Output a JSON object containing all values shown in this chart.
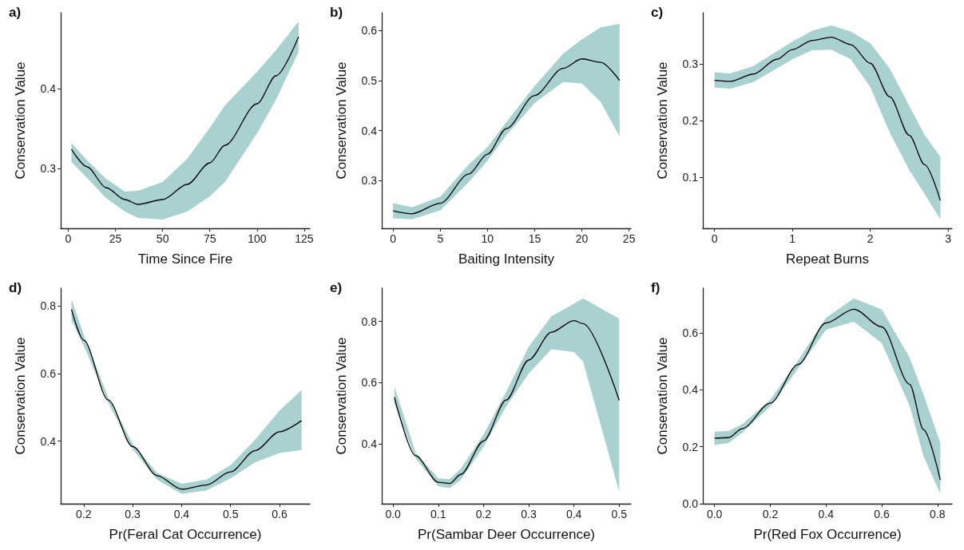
{
  "chart_data": [
    {
      "type": "line",
      "title": "a)",
      "xlabel": "Time Since Fire",
      "ylabel": "Conservation Value",
      "xlim": [
        -4,
        128
      ],
      "xticks": [
        0,
        25,
        50,
        75,
        100,
        125
      ],
      "ylim": [
        0.225,
        0.495
      ],
      "yticks": [
        0.3,
        0.4
      ],
      "x": [
        1.7,
        10,
        20,
        30,
        37,
        50,
        63,
        75,
        83,
        100,
        110,
        122
      ],
      "series": [
        {
          "color": "#000000",
          "values": [
            0.324,
            0.302,
            0.276,
            0.261,
            0.255,
            0.261,
            0.28,
            0.307,
            0.329,
            0.381,
            0.416,
            0.465
          ],
          "lower": [
            0.308,
            0.288,
            0.263,
            0.246,
            0.238,
            0.236,
            0.246,
            0.265,
            0.283,
            0.344,
            0.386,
            0.446
          ],
          "upper": [
            0.332,
            0.31,
            0.287,
            0.271,
            0.272,
            0.283,
            0.312,
            0.351,
            0.379,
            0.421,
            0.448,
            0.484
          ]
        }
      ]
    },
    {
      "type": "line",
      "title": "b)",
      "xlabel": "Baiting Intensity",
      "ylabel": "Conservation Value",
      "xlim": [
        -1.2,
        25.2
      ],
      "xticks": [
        0,
        5,
        10,
        15,
        20,
        25
      ],
      "ylim": [
        0.205,
        0.635
      ],
      "yticks": [
        0.3,
        0.4,
        0.5,
        0.6
      ],
      "x": [
        0,
        2,
        5,
        8,
        10,
        12,
        15,
        18,
        20,
        22,
        24
      ],
      "series": [
        {
          "color": "#000000",
          "values": [
            0.24,
            0.234,
            0.255,
            0.313,
            0.353,
            0.404,
            0.47,
            0.524,
            0.543,
            0.536,
            0.5
          ],
          "lower": [
            0.225,
            0.223,
            0.241,
            0.297,
            0.34,
            0.391,
            0.455,
            0.497,
            0.494,
            0.457,
            0.388
          ],
          "upper": [
            0.255,
            0.247,
            0.268,
            0.332,
            0.367,
            0.417,
            0.489,
            0.553,
            0.582,
            0.606,
            0.613
          ]
        }
      ]
    },
    {
      "type": "line",
      "title": "c)",
      "xlabel": "Repeat Burns",
      "ylabel": "Conservation Value",
      "xlim": [
        -0.15,
        3.05
      ],
      "xticks": [
        0,
        1,
        2,
        3
      ],
      "ylim": [
        0.01,
        0.39
      ],
      "yticks": [
        0.1,
        0.2,
        0.3
      ],
      "x": [
        0,
        0.2,
        0.5,
        0.8,
        1,
        1.25,
        1.5,
        1.75,
        2,
        2.25,
        2.5,
        2.7,
        2.9
      ],
      "series": [
        {
          "color": "#000000",
          "values": [
            0.271,
            0.269,
            0.282,
            0.308,
            0.325,
            0.341,
            0.347,
            0.334,
            0.301,
            0.242,
            0.174,
            0.122,
            0.059
          ],
          "lower": [
            0.258,
            0.256,
            0.268,
            0.292,
            0.308,
            0.324,
            0.325,
            0.308,
            0.259,
            0.179,
            0.113,
            0.07,
            0.026
          ],
          "upper": [
            0.285,
            0.283,
            0.296,
            0.322,
            0.339,
            0.358,
            0.368,
            0.357,
            0.336,
            0.292,
            0.226,
            0.174,
            0.136
          ]
        }
      ]
    },
    {
      "type": "line",
      "title": "d)",
      "xlabel": "Pr(Feral Cat Occurrence)",
      "ylabel": "Conservation Value",
      "xlim": [
        0.153,
        0.662
      ],
      "xticks": [
        0.2,
        0.3,
        0.4,
        0.5,
        0.6
      ],
      "ylim": [
        0.215,
        0.853
      ],
      "yticks": [
        0.4,
        0.6,
        0.8
      ],
      "x": [
        0.175,
        0.2,
        0.25,
        0.3,
        0.35,
        0.4,
        0.45,
        0.5,
        0.55,
        0.6,
        0.645
      ],
      "series": [
        {
          "color": "#000000",
          "values": [
            0.79,
            0.699,
            0.522,
            0.384,
            0.298,
            0.258,
            0.27,
            0.309,
            0.372,
            0.428,
            0.461
          ],
          "lower": [
            0.758,
            0.683,
            0.514,
            0.376,
            0.286,
            0.244,
            0.254,
            0.29,
            0.337,
            0.365,
            0.374
          ],
          "upper": [
            0.821,
            0.715,
            0.53,
            0.392,
            0.306,
            0.274,
            0.286,
            0.329,
            0.404,
            0.491,
            0.551
          ]
        }
      ]
    },
    {
      "type": "line",
      "title": "e)",
      "xlabel": "Pr(Sambar Deer Occurrence)",
      "ylabel": "Conservation Value",
      "xlim": [
        -0.025,
        0.526
      ],
      "xticks": [
        {
          "value": 0,
          "label": "0.0"
        },
        0.1,
        0.2,
        0.3,
        0.4,
        0.5
      ],
      "ylim": [
        0.204,
        0.909
      ],
      "yticks": [
        0.4,
        0.6,
        0.8
      ],
      "x": [
        0.003,
        0.05,
        0.1,
        0.125,
        0.15,
        0.2,
        0.25,
        0.3,
        0.35,
        0.4,
        0.42,
        0.5
      ],
      "series": [
        {
          "color": "#000000",
          "values": [
            0.552,
            0.361,
            0.274,
            0.27,
            0.3,
            0.409,
            0.543,
            0.674,
            0.765,
            0.803,
            0.793,
            0.542
          ],
          "lower": [
            0.53,
            0.352,
            0.261,
            0.255,
            0.283,
            0.391,
            0.522,
            0.63,
            0.709,
            0.7,
            0.67,
            0.243
          ],
          "upper": [
            0.587,
            0.37,
            0.287,
            0.284,
            0.319,
            0.43,
            0.57,
            0.717,
            0.817,
            0.858,
            0.876,
            0.809
          ]
        }
      ]
    },
    {
      "type": "line",
      "title": "f)",
      "xlabel": "Pr(Red Fox Occurrence)",
      "ylabel": "Conservation Value",
      "xlim": [
        -0.042,
        0.852
      ],
      "xticks": [
        {
          "value": 0,
          "label": "0.0"
        },
        0.2,
        0.4,
        0.6,
        0.8
      ],
      "ylim": [
        0,
        0.757
      ],
      "yticks": [
        {
          "value": 0,
          "label": "0.0"
        },
        0.2,
        0.4,
        0.6
      ],
      "x": [
        0,
        0.05,
        0.1,
        0.2,
        0.3,
        0.4,
        0.5,
        0.6,
        0.7,
        0.75,
        0.81
      ],
      "series": [
        {
          "color": "#000000",
          "values": [
            0.23,
            0.232,
            0.264,
            0.353,
            0.489,
            0.635,
            0.683,
            0.621,
            0.419,
            0.26,
            0.084
          ],
          "lower": [
            0.206,
            0.213,
            0.25,
            0.342,
            0.475,
            0.611,
            0.639,
            0.564,
            0.344,
            0.166,
            0.035
          ],
          "upper": [
            0.253,
            0.255,
            0.28,
            0.365,
            0.503,
            0.653,
            0.721,
            0.682,
            0.513,
            0.382,
            0.213
          ]
        }
      ]
    }
  ]
}
